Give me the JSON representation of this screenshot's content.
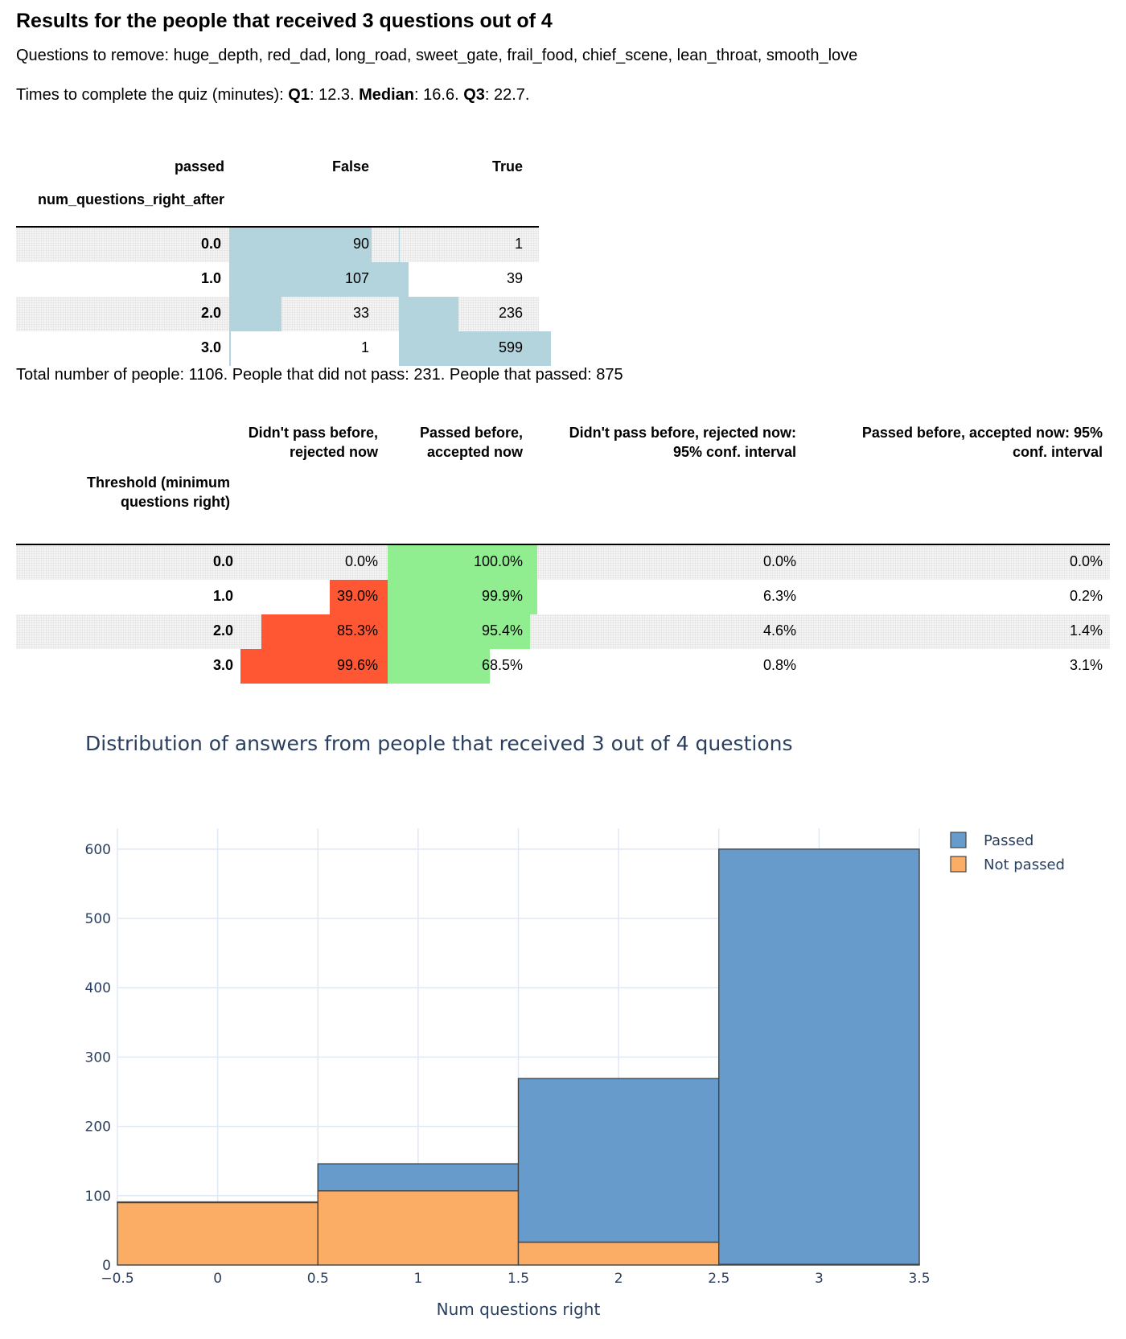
{
  "header": {
    "title": "Results for the people that received 3 questions out of 4",
    "questions_prefix": "Questions to remove: ",
    "questions_list": "huge_depth, red_dad, long_road, sweet_gate, frail_food, chief_scene, lean_throat, smooth_love",
    "times_prefix": "Times to complete the quiz (minutes): ",
    "q1_label": "Q1",
    "q1_value": ": 12.3. ",
    "median_label": "Median",
    "median_value": ": 16.6. ",
    "q3_label": "Q3",
    "q3_value": ": 22.7."
  },
  "table1": {
    "columns_label": "passed",
    "index_label": "num_questions_right_after",
    "col_false": "False",
    "col_true": "True",
    "bar_color": "#b3d4dc",
    "rows": [
      {
        "index": "0.0",
        "false": "90",
        "true": "1",
        "false_n": 90,
        "true_n": 1
      },
      {
        "index": "1.0",
        "false": "107",
        "true": "39",
        "false_n": 107,
        "true_n": 39
      },
      {
        "index": "2.0",
        "false": "33",
        "true": "236",
        "false_n": 33,
        "true_n": 236
      },
      {
        "index": "3.0",
        "false": "1",
        "true": "599",
        "false_n": 1,
        "true_n": 599
      }
    ]
  },
  "summary": "Total number of people: 1106. People that did not pass: 231. People that passed: 875",
  "table2": {
    "index_label_1": "Threshold (minimum",
    "index_label_2": "questions right)",
    "col1_line1": "Didn't pass before,",
    "col1_line2": "rejected now",
    "col2_line1": "Passed before,",
    "col2_line2": "accepted now",
    "col3_line1": "Didn't pass before, rejected now:",
    "col3_line2": "95% conf. interval",
    "col4_line1": "Passed before, accepted now: 95%",
    "col4_line2": "conf. interval",
    "rejected_color": "#ff5733",
    "accepted_color": "#90ee90",
    "rows": [
      {
        "index": "0.0",
        "rejected": "0.0%",
        "accepted": "100.0%",
        "ci_rejected": "0.0%",
        "ci_accepted": "0.0%",
        "rejected_pct": 0.0,
        "accepted_pct": 100.0
      },
      {
        "index": "1.0",
        "rejected": "39.0%",
        "accepted": "99.9%",
        "ci_rejected": "6.3%",
        "ci_accepted": "0.2%",
        "rejected_pct": 39.0,
        "accepted_pct": 99.9
      },
      {
        "index": "2.0",
        "rejected": "85.3%",
        "accepted": "95.4%",
        "ci_rejected": "4.6%",
        "ci_accepted": "1.4%",
        "rejected_pct": 85.3,
        "accepted_pct": 95.4
      },
      {
        "index": "3.0",
        "rejected": "99.6%",
        "accepted": "68.5%",
        "ci_rejected": "0.8%",
        "ci_accepted": "3.1%",
        "rejected_pct": 99.6,
        "accepted_pct": 68.5
      }
    ]
  },
  "chart_data": {
    "type": "bar",
    "title": "Distribution of answers from people that received 3 out of 4 questions",
    "xlabel": "Num questions right",
    "ylabel": "",
    "barmode": "stack",
    "x": [
      0,
      1,
      2,
      3
    ],
    "xlim": [
      -0.5,
      3.5
    ],
    "ylim": [
      0,
      630
    ],
    "x_ticks": [
      -0.5,
      0,
      0.5,
      1,
      1.5,
      2,
      2.5,
      3,
      3.5
    ],
    "x_tick_labels": [
      "−0.5",
      "0",
      "0.5",
      "1",
      "1.5",
      "2",
      "2.5",
      "3",
      "3.5"
    ],
    "y_ticks": [
      0,
      100,
      200,
      300,
      400,
      500,
      600
    ],
    "y_tick_labels": [
      "0",
      "100",
      "200",
      "300",
      "400",
      "500",
      "600"
    ],
    "grid": true,
    "legend_position": "top-right",
    "series": [
      {
        "name": "Not passed",
        "color": "#fbad65",
        "values": [
          90,
          107,
          33,
          1
        ]
      },
      {
        "name": "Passed",
        "color": "#679bcc",
        "values": [
          1,
          39,
          236,
          599
        ]
      }
    ],
    "legend_order": [
      "Passed",
      "Not passed"
    ]
  }
}
